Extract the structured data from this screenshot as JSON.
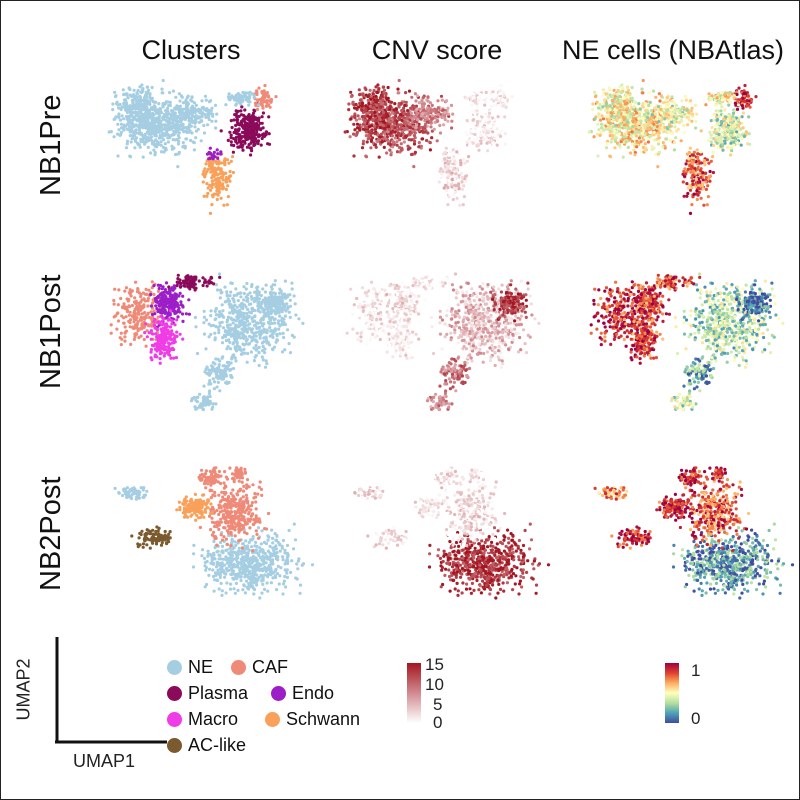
{
  "chart_data": {
    "type": "scatter",
    "subtype": "umap-embedding-grid",
    "columns": [
      "Clusters",
      "CNV score",
      "NE cells (NBAtlas)"
    ],
    "rows": [
      "NB1Pre",
      "NB1Post",
      "NB2Post"
    ],
    "axes": {
      "x": "UMAP1",
      "y": "UMAP2"
    },
    "cluster_legend": [
      {
        "name": "NE",
        "color": "#a6cee3"
      },
      {
        "name": "CAF",
        "color": "#f08a78"
      },
      {
        "name": "Plasma",
        "color": "#8b0a59"
      },
      {
        "name": "Endo",
        "color": "#9b1ec8"
      },
      {
        "name": "Macro",
        "color": "#f03ce6"
      },
      {
        "name": "Schwann",
        "color": "#f9a05a"
      },
      {
        "name": "AC-like",
        "color": "#7a5a2e"
      }
    ],
    "cnv_scale": {
      "min": 0,
      "max": 15,
      "ticks": [
        15,
        10,
        5,
        0
      ],
      "colors": [
        "#ffffff",
        "#a31621"
      ]
    },
    "ne_scale": {
      "min": 0,
      "max": 1,
      "ticks": [
        1,
        0
      ],
      "colors": [
        "#3f4ca0",
        "#4fa3b5",
        "#b3df9f",
        "#ffffbf",
        "#fdae61",
        "#e0412e",
        "#9e0142"
      ]
    }
  }
}
